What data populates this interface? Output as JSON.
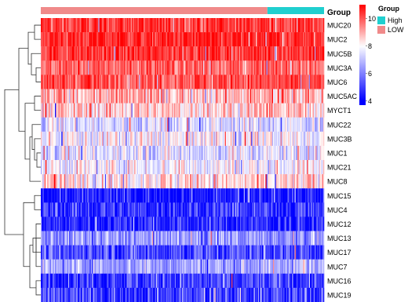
{
  "chart_data": {
    "type": "heatmap",
    "annotation": {
      "title": "Group",
      "categories": [
        "High",
        "LOW"
      ],
      "colors": {
        "High": "#1fcfcf",
        "LOW": "#f08a8a"
      },
      "high_fraction": 0.2
    },
    "rows": [
      {
        "name": "MUC20",
        "mean": 10.3
      },
      {
        "name": "MUC2",
        "mean": 10.5
      },
      {
        "name": "MUC5B",
        "mean": 10.4
      },
      {
        "name": "MUC3A",
        "mean": 9.8
      },
      {
        "name": "MUC6",
        "mean": 10.1
      },
      {
        "name": "MUC5AC",
        "mean": 8.9
      },
      {
        "name": "MYCT1",
        "mean": 8.6
      },
      {
        "name": "MUC22",
        "mean": 7.4
      },
      {
        "name": "MUC3B",
        "mean": 7.9
      },
      {
        "name": "MUC1",
        "mean": 7.5
      },
      {
        "name": "MUC21",
        "mean": 7.9
      },
      {
        "name": "MUC8",
        "mean": 8.4
      },
      {
        "name": "MUC15",
        "mean": 4.3
      },
      {
        "name": "MUC4",
        "mean": 4.8
      },
      {
        "name": "MUC12",
        "mean": 4.6
      },
      {
        "name": "MUC13",
        "mean": 6.4
      },
      {
        "name": "MUC17",
        "mean": 5.2
      },
      {
        "name": "MUC7",
        "mean": 6.6
      },
      {
        "name": "MUC16",
        "mean": 5.0
      },
      {
        "name": "MUC19",
        "mean": 5.0
      }
    ],
    "color_scale": {
      "min": 4,
      "mid": 8,
      "max": 11,
      "colors": [
        "#0000ff",
        "#ffffff",
        "#ff0000"
      ],
      "ticks": [
        "10",
        "8",
        "6",
        "4"
      ]
    },
    "legend_position": "right"
  }
}
